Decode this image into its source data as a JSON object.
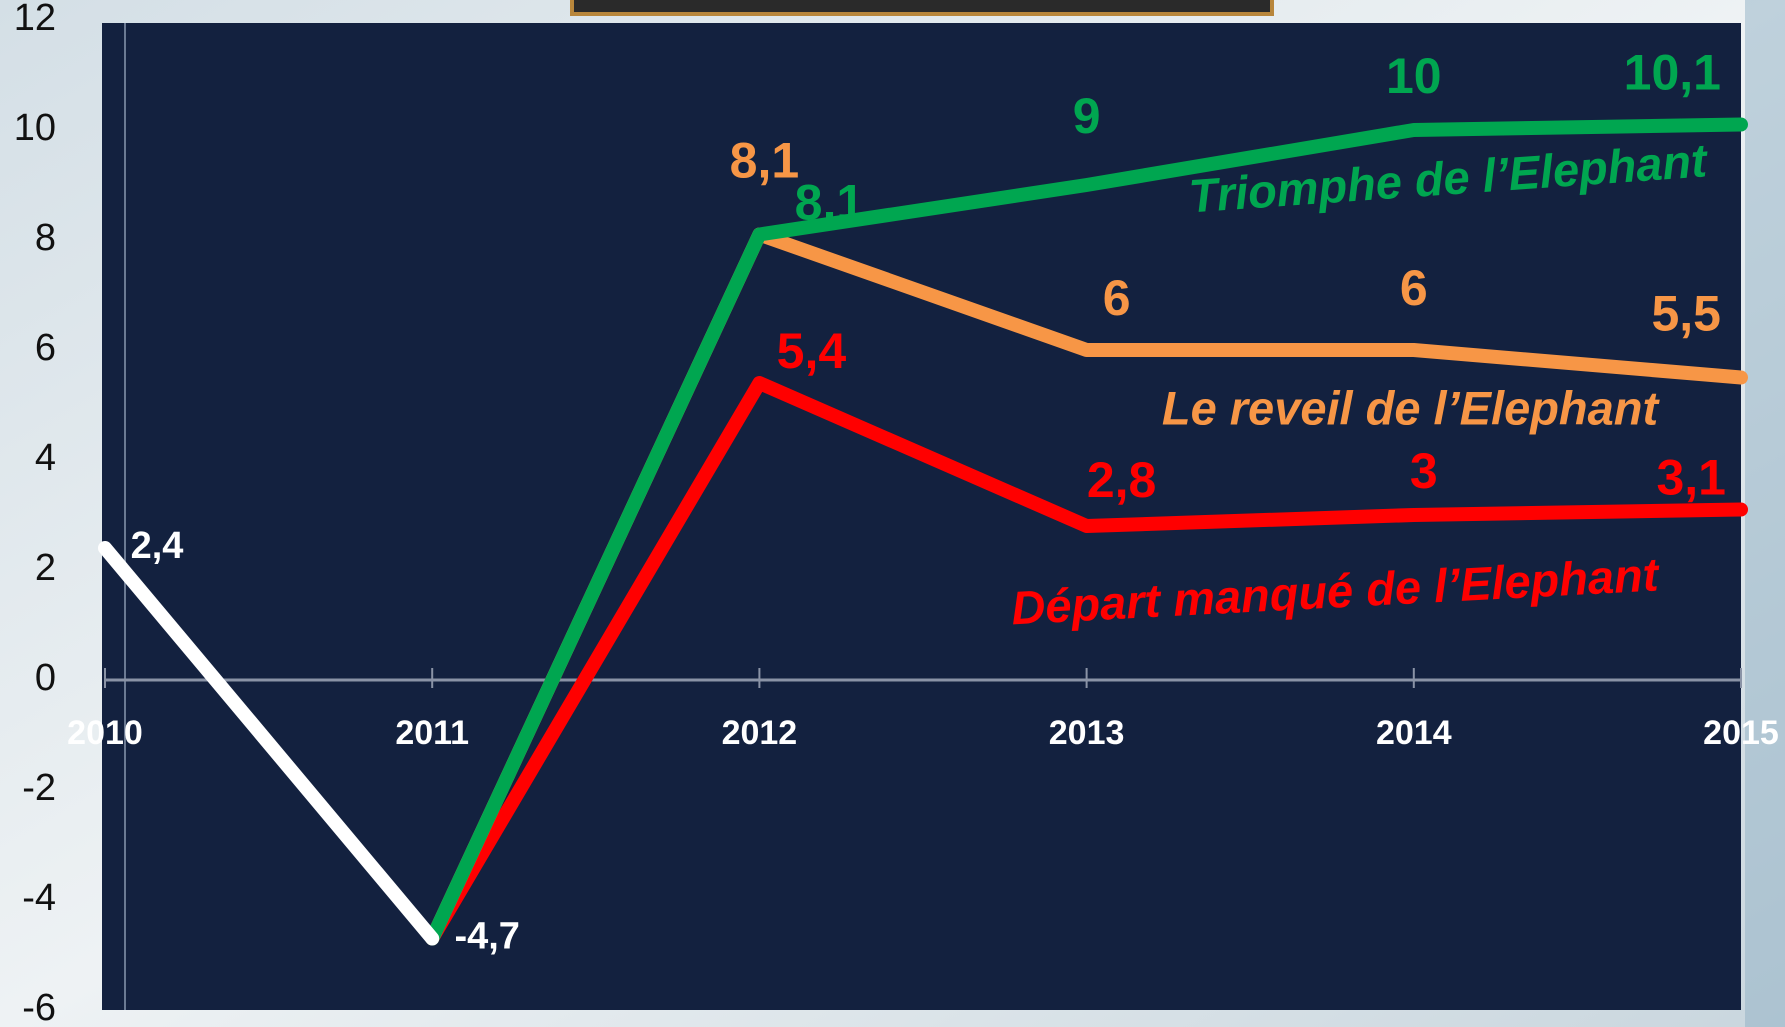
{
  "chart_data": {
    "type": "line",
    "x": [
      2010,
      2011,
      2012,
      2013,
      2014,
      2015
    ],
    "xlim": [
      2010,
      2015
    ],
    "xticks": [
      2010,
      2011,
      2012,
      2013,
      2014,
      2015
    ],
    "ylim": [
      -6,
      12
    ],
    "yticks": [
      -6,
      -4,
      -2,
      0,
      2,
      4,
      6,
      8,
      10,
      12
    ],
    "series": [
      {
        "color": "#ffffff",
        "values": [
          2.4,
          -4.7,
          null,
          null,
          null,
          null
        ],
        "value_labels": [
          "2,4",
          "-4,7",
          null,
          null,
          null,
          null
        ]
      },
      {
        "name": "Triomphe de l’Elephant",
        "color": "#00a650",
        "values": [
          null,
          -4.7,
          8.1,
          9,
          10,
          10.1
        ],
        "value_labels": [
          null,
          null,
          "8,1",
          "9",
          "10",
          "10,1"
        ]
      },
      {
        "name": "Le reveil de l’Elephant",
        "color": "#f79646",
        "values": [
          null,
          -4.7,
          8.1,
          6,
          6,
          5.5
        ],
        "value_labels": [
          null,
          null,
          "8,1",
          "6",
          "6",
          "5,5"
        ]
      },
      {
        "name": "Départ manqué de l’Elephant",
        "color": "#ff0000",
        "values": [
          null,
          -4.7,
          5.4,
          2.8,
          3,
          3.1
        ],
        "value_labels": [
          null,
          null,
          "5,4",
          "2,8",
          "3",
          "3,1"
        ]
      }
    ]
  }
}
